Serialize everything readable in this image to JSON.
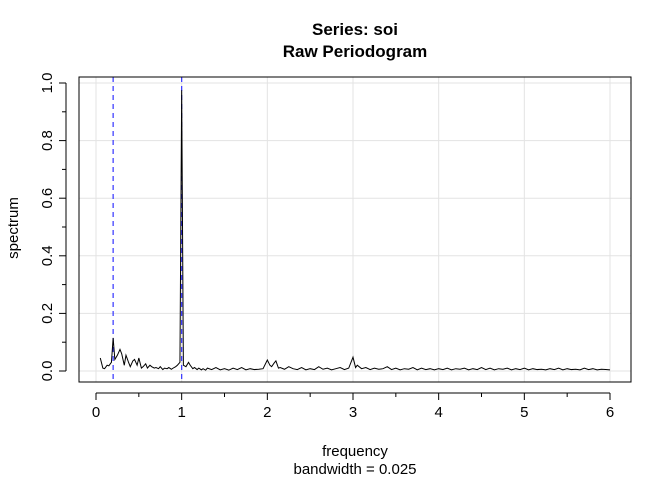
{
  "chart_data": {
    "type": "line",
    "title": "Series: soi",
    "subtitle": "Raw Periodogram",
    "xlabel": "frequency",
    "xlabel_sub": "bandwidth = 0.025",
    "ylabel": "spectrum",
    "xlim": [
      0,
      6
    ],
    "ylim": [
      0,
      1.0
    ],
    "x_ticks": [
      0,
      1,
      2,
      3,
      4,
      5,
      6
    ],
    "y_ticks": [
      0.0,
      0.2,
      0.4,
      0.6,
      0.8,
      1.0
    ],
    "x_tick_labels": [
      "0",
      "1",
      "2",
      "3",
      "4",
      "5",
      "6"
    ],
    "y_tick_labels": [
      "0.0",
      "0.2",
      "0.4",
      "0.6",
      "0.8",
      "1.0"
    ],
    "grid": true,
    "reference_lines": [
      {
        "orientation": "vertical",
        "x": 0.2,
        "style": "dashed",
        "color": "#3333ff"
      },
      {
        "orientation": "vertical",
        "x": 1.0,
        "style": "dashed",
        "color": "#3333ff"
      }
    ],
    "series": [
      {
        "color": "#000000",
        "points": [
          [
            0.05,
            0.045
          ],
          [
            0.08,
            0.01
          ],
          [
            0.1,
            0.008
          ],
          [
            0.13,
            0.02
          ],
          [
            0.15,
            0.018
          ],
          [
            0.18,
            0.03
          ],
          [
            0.2,
            0.115
          ],
          [
            0.22,
            0.04
          ],
          [
            0.25,
            0.055
          ],
          [
            0.28,
            0.075
          ],
          [
            0.3,
            0.06
          ],
          [
            0.33,
            0.02
          ],
          [
            0.35,
            0.055
          ],
          [
            0.38,
            0.03
          ],
          [
            0.4,
            0.015
          ],
          [
            0.43,
            0.035
          ],
          [
            0.45,
            0.04
          ],
          [
            0.48,
            0.02
          ],
          [
            0.5,
            0.045
          ],
          [
            0.53,
            0.01
          ],
          [
            0.55,
            0.015
          ],
          [
            0.58,
            0.025
          ],
          [
            0.6,
            0.01
          ],
          [
            0.63,
            0.02
          ],
          [
            0.65,
            0.015
          ],
          [
            0.68,
            0.01
          ],
          [
            0.7,
            0.012
          ],
          [
            0.73,
            0.008
          ],
          [
            0.75,
            0.015
          ],
          [
            0.78,
            0.005
          ],
          [
            0.8,
            0.01
          ],
          [
            0.83,
            0.008
          ],
          [
            0.85,
            0.012
          ],
          [
            0.88,
            0.006
          ],
          [
            0.9,
            0.01
          ],
          [
            0.93,
            0.015
          ],
          [
            0.95,
            0.02
          ],
          [
            0.98,
            0.03
          ],
          [
            1.0,
            0.975
          ],
          [
            1.02,
            0.02
          ],
          [
            1.05,
            0.015
          ],
          [
            1.08,
            0.03
          ],
          [
            1.1,
            0.02
          ],
          [
            1.13,
            0.008
          ],
          [
            1.15,
            0.012
          ],
          [
            1.18,
            0.005
          ],
          [
            1.2,
            0.01
          ],
          [
            1.23,
            0.004
          ],
          [
            1.25,
            0.008
          ],
          [
            1.28,
            0.003
          ],
          [
            1.3,
            0.01
          ],
          [
            1.35,
            0.005
          ],
          [
            1.4,
            0.012
          ],
          [
            1.45,
            0.004
          ],
          [
            1.5,
            0.008
          ],
          [
            1.55,
            0.003
          ],
          [
            1.6,
            0.01
          ],
          [
            1.65,
            0.005
          ],
          [
            1.7,
            0.012
          ],
          [
            1.75,
            0.004
          ],
          [
            1.8,
            0.008
          ],
          [
            1.85,
            0.005
          ],
          [
            1.9,
            0.006
          ],
          [
            1.95,
            0.008
          ],
          [
            2.0,
            0.038
          ],
          [
            2.03,
            0.02
          ],
          [
            2.05,
            0.015
          ],
          [
            2.08,
            0.028
          ],
          [
            2.1,
            0.035
          ],
          [
            2.13,
            0.01
          ],
          [
            2.15,
            0.012
          ],
          [
            2.2,
            0.006
          ],
          [
            2.25,
            0.015
          ],
          [
            2.3,
            0.008
          ],
          [
            2.35,
            0.005
          ],
          [
            2.4,
            0.012
          ],
          [
            2.45,
            0.004
          ],
          [
            2.5,
            0.008
          ],
          [
            2.55,
            0.005
          ],
          [
            2.6,
            0.015
          ],
          [
            2.65,
            0.006
          ],
          [
            2.7,
            0.01
          ],
          [
            2.75,
            0.004
          ],
          [
            2.8,
            0.008
          ],
          [
            2.85,
            0.012
          ],
          [
            2.9,
            0.005
          ],
          [
            2.95,
            0.01
          ],
          [
            3.0,
            0.048
          ],
          [
            3.03,
            0.012
          ],
          [
            3.05,
            0.02
          ],
          [
            3.1,
            0.008
          ],
          [
            3.15,
            0.012
          ],
          [
            3.2,
            0.005
          ],
          [
            3.25,
            0.01
          ],
          [
            3.3,
            0.006
          ],
          [
            3.35,
            0.008
          ],
          [
            3.4,
            0.015
          ],
          [
            3.45,
            0.005
          ],
          [
            3.5,
            0.01
          ],
          [
            3.55,
            0.004
          ],
          [
            3.6,
            0.008
          ],
          [
            3.65,
            0.006
          ],
          [
            3.7,
            0.012
          ],
          [
            3.75,
            0.004
          ],
          [
            3.8,
            0.01
          ],
          [
            3.85,
            0.005
          ],
          [
            3.9,
            0.008
          ],
          [
            3.95,
            0.004
          ],
          [
            4.0,
            0.008
          ],
          [
            4.05,
            0.005
          ],
          [
            4.1,
            0.01
          ],
          [
            4.15,
            0.004
          ],
          [
            4.2,
            0.008
          ],
          [
            4.25,
            0.006
          ],
          [
            4.3,
            0.01
          ],
          [
            4.35,
            0.004
          ],
          [
            4.4,
            0.008
          ],
          [
            4.45,
            0.005
          ],
          [
            4.5,
            0.012
          ],
          [
            4.55,
            0.005
          ],
          [
            4.6,
            0.01
          ],
          [
            4.65,
            0.004
          ],
          [
            4.7,
            0.008
          ],
          [
            4.75,
            0.006
          ],
          [
            4.8,
            0.01
          ],
          [
            4.85,
            0.004
          ],
          [
            4.9,
            0.008
          ],
          [
            4.95,
            0.005
          ],
          [
            5.0,
            0.01
          ],
          [
            5.05,
            0.004
          ],
          [
            5.1,
            0.008
          ],
          [
            5.15,
            0.005
          ],
          [
            5.2,
            0.006
          ],
          [
            5.25,
            0.004
          ],
          [
            5.3,
            0.008
          ],
          [
            5.35,
            0.005
          ],
          [
            5.4,
            0.01
          ],
          [
            5.45,
            0.004
          ],
          [
            5.5,
            0.008
          ],
          [
            5.55,
            0.005
          ],
          [
            5.6,
            0.006
          ],
          [
            5.65,
            0.004
          ],
          [
            5.7,
            0.01
          ],
          [
            5.75,
            0.005
          ],
          [
            5.8,
            0.008
          ],
          [
            5.85,
            0.004
          ],
          [
            5.9,
            0.006
          ],
          [
            5.95,
            0.005
          ],
          [
            6.0,
            0.004
          ]
        ]
      }
    ]
  }
}
